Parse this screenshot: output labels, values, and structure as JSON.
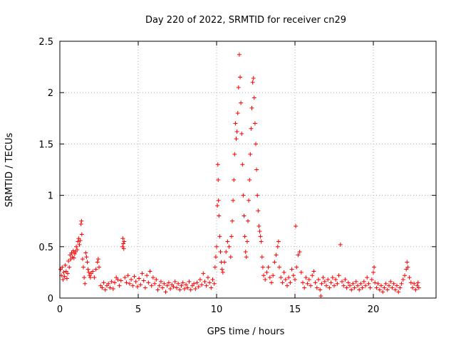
{
  "chart_data": {
    "type": "scatter",
    "title": "Day 220 of 2022, SRMTID for receiver cn29",
    "xlabel": "GPS time / hours",
    "ylabel": "SRMTID / TECUs",
    "xlim": [
      0,
      24
    ],
    "ylim": [
      0,
      2.5
    ],
    "xticks": [
      "0",
      "5",
      "10",
      "15",
      "20"
    ],
    "yticks": [
      "0",
      "0.5",
      "1",
      "1.5",
      "2",
      "2.5"
    ],
    "grid": true,
    "marker": "+",
    "series": [
      {
        "name": "SRMTID",
        "color": "#ff0000",
        "points": [
          [
            0.05,
            0.28
          ],
          [
            0.1,
            0.22
          ],
          [
            0.15,
            0.3
          ],
          [
            0.2,
            0.18
          ],
          [
            0.25,
            0.25
          ],
          [
            0.3,
            0.21
          ],
          [
            0.35,
            0.32
          ],
          [
            0.4,
            0.26
          ],
          [
            0.45,
            0.19
          ],
          [
            0.5,
            0.24
          ],
          [
            0.55,
            0.36
          ],
          [
            0.6,
            0.3
          ],
          [
            0.65,
            0.42
          ],
          [
            0.7,
            0.38
          ],
          [
            0.75,
            0.44
          ],
          [
            0.8,
            0.4
          ],
          [
            0.85,
            0.46
          ],
          [
            0.9,
            0.39
          ],
          [
            0.95,
            0.43
          ],
          [
            1.0,
            0.45
          ],
          [
            1.05,
            0.5
          ],
          [
            1.1,
            0.47
          ],
          [
            1.15,
            0.55
          ],
          [
            1.2,
            0.58
          ],
          [
            1.25,
            0.52
          ],
          [
            1.3,
            0.56
          ],
          [
            1.35,
            0.72
          ],
          [
            1.38,
            0.75
          ],
          [
            1.4,
            0.62
          ],
          [
            1.45,
            0.38
          ],
          [
            1.5,
            0.3
          ],
          [
            1.55,
            0.2
          ],
          [
            1.6,
            0.14
          ],
          [
            1.65,
            0.44
          ],
          [
            1.7,
            0.4
          ],
          [
            1.75,
            0.35
          ],
          [
            1.8,
            0.28
          ],
          [
            1.85,
            0.25
          ],
          [
            1.9,
            0.22
          ],
          [
            1.95,
            0.2
          ],
          [
            2.0,
            0.24
          ],
          [
            2.1,
            0.26
          ],
          [
            2.2,
            0.2
          ],
          [
            2.3,
            0.28
          ],
          [
            2.4,
            0.35
          ],
          [
            2.45,
            0.38
          ],
          [
            2.5,
            0.3
          ],
          [
            2.6,
            0.12
          ],
          [
            2.7,
            0.1
          ],
          [
            2.8,
            0.15
          ],
          [
            2.9,
            0.08
          ],
          [
            3.0,
            0.12
          ],
          [
            3.1,
            0.14
          ],
          [
            3.2,
            0.1
          ],
          [
            3.3,
            0.16
          ],
          [
            3.4,
            0.09
          ],
          [
            3.5,
            0.15
          ],
          [
            3.6,
            0.2
          ],
          [
            3.7,
            0.18
          ],
          [
            3.8,
            0.12
          ],
          [
            3.9,
            0.17
          ],
          [
            4.0,
            0.5
          ],
          [
            4.02,
            0.58
          ],
          [
            4.05,
            0.53
          ],
          [
            4.08,
            0.48
          ],
          [
            4.1,
            0.55
          ],
          [
            4.15,
            0.2
          ],
          [
            4.25,
            0.15
          ],
          [
            4.35,
            0.22
          ],
          [
            4.45,
            0.14
          ],
          [
            4.55,
            0.18
          ],
          [
            4.65,
            0.12
          ],
          [
            4.75,
            0.21
          ],
          [
            4.85,
            0.16
          ],
          [
            4.95,
            0.11
          ],
          [
            5.05,
            0.19
          ],
          [
            5.15,
            0.13
          ],
          [
            5.25,
            0.24
          ],
          [
            5.35,
            0.17
          ],
          [
            5.45,
            0.1
          ],
          [
            5.55,
            0.22
          ],
          [
            5.65,
            0.15
          ],
          [
            5.75,
            0.26
          ],
          [
            5.85,
            0.12
          ],
          [
            5.95,
            0.2
          ],
          [
            6.05,
            0.14
          ],
          [
            6.15,
            0.18
          ],
          [
            6.25,
            0.08
          ],
          [
            6.35,
            0.12
          ],
          [
            6.45,
            0.16
          ],
          [
            6.55,
            0.1
          ],
          [
            6.65,
            0.14
          ],
          [
            6.75,
            0.06
          ],
          [
            6.85,
            0.12
          ],
          [
            6.95,
            0.15
          ],
          [
            7.05,
            0.09
          ],
          [
            7.15,
            0.13
          ],
          [
            7.25,
            0.11
          ],
          [
            7.35,
            0.16
          ],
          [
            7.45,
            0.1
          ],
          [
            7.55,
            0.14
          ],
          [
            7.65,
            0.08
          ],
          [
            7.75,
            0.12
          ],
          [
            7.85,
            0.15
          ],
          [
            7.95,
            0.09
          ],
          [
            8.05,
            0.13
          ],
          [
            8.15,
            0.1
          ],
          [
            8.25,
            0.16
          ],
          [
            8.35,
            0.08
          ],
          [
            8.45,
            0.12
          ],
          [
            8.55,
            0.14
          ],
          [
            8.65,
            0.09
          ],
          [
            8.75,
            0.15
          ],
          [
            8.85,
            0.11
          ],
          [
            8.95,
            0.18
          ],
          [
            9.05,
            0.13
          ],
          [
            9.15,
            0.24
          ],
          [
            9.25,
            0.16
          ],
          [
            9.35,
            0.12
          ],
          [
            9.45,
            0.2
          ],
          [
            9.55,
            0.15
          ],
          [
            9.65,
            0.1
          ],
          [
            9.75,
            0.18
          ],
          [
            9.85,
            0.14
          ],
          [
            9.9,
            0.3
          ],
          [
            9.95,
            0.4
          ],
          [
            10.0,
            0.5
          ],
          [
            10.05,
            0.9
          ],
          [
            10.08,
            1.3
          ],
          [
            10.1,
            1.15
          ],
          [
            10.12,
            0.95
          ],
          [
            10.15,
            0.8
          ],
          [
            10.2,
            0.6
          ],
          [
            10.25,
            0.45
          ],
          [
            10.3,
            0.35
          ],
          [
            10.35,
            0.28
          ],
          [
            10.4,
            0.25
          ],
          [
            10.5,
            0.35
          ],
          [
            10.6,
            0.45
          ],
          [
            10.7,
            0.55
          ],
          [
            10.8,
            0.5
          ],
          [
            10.9,
            0.4
          ],
          [
            10.95,
            0.6
          ],
          [
            11.0,
            0.75
          ],
          [
            11.05,
            0.95
          ],
          [
            11.1,
            1.15
          ],
          [
            11.15,
            1.4
          ],
          [
            11.2,
            1.7
          ],
          [
            11.25,
            1.55
          ],
          [
            11.3,
            1.62
          ],
          [
            11.35,
            1.8
          ],
          [
            11.4,
            2.05
          ],
          [
            11.45,
            2.37
          ],
          [
            11.5,
            2.15
          ],
          [
            11.55,
            1.9
          ],
          [
            11.6,
            1.6
          ],
          [
            11.65,
            1.3
          ],
          [
            11.7,
            1.0
          ],
          [
            11.75,
            0.8
          ],
          [
            11.8,
            0.6
          ],
          [
            11.85,
            0.45
          ],
          [
            11.9,
            0.4
          ],
          [
            11.95,
            0.55
          ],
          [
            12.0,
            0.75
          ],
          [
            12.05,
            0.95
          ],
          [
            12.1,
            1.15
          ],
          [
            12.15,
            1.4
          ],
          [
            12.2,
            1.65
          ],
          [
            12.25,
            1.85
          ],
          [
            12.3,
            2.1
          ],
          [
            12.35,
            2.14
          ],
          [
            12.4,
            1.95
          ],
          [
            12.45,
            1.7
          ],
          [
            12.5,
            1.5
          ],
          [
            12.55,
            1.25
          ],
          [
            12.6,
            1.0
          ],
          [
            12.65,
            0.85
          ],
          [
            12.7,
            0.7
          ],
          [
            12.75,
            0.65
          ],
          [
            12.8,
            0.6
          ],
          [
            12.85,
            0.55
          ],
          [
            12.9,
            0.4
          ],
          [
            12.95,
            0.3
          ],
          [
            13.0,
            0.22
          ],
          [
            13.1,
            0.18
          ],
          [
            13.2,
            0.25
          ],
          [
            13.3,
            0.3
          ],
          [
            13.4,
            0.2
          ],
          [
            13.5,
            0.15
          ],
          [
            13.6,
            0.22
          ],
          [
            13.7,
            0.35
          ],
          [
            13.8,
            0.42
          ],
          [
            13.9,
            0.5
          ],
          [
            13.95,
            0.55
          ],
          [
            14.0,
            0.3
          ],
          [
            14.1,
            0.2
          ],
          [
            14.2,
            0.15
          ],
          [
            14.3,
            0.25
          ],
          [
            14.4,
            0.18
          ],
          [
            14.5,
            0.12
          ],
          [
            14.6,
            0.2
          ],
          [
            14.7,
            0.15
          ],
          [
            14.8,
            0.28
          ],
          [
            14.9,
            0.22
          ],
          [
            15.0,
            0.18
          ],
          [
            15.05,
            0.7
          ],
          [
            15.1,
            0.3
          ],
          [
            15.2,
            0.42
          ],
          [
            15.3,
            0.45
          ],
          [
            15.4,
            0.25
          ],
          [
            15.5,
            0.15
          ],
          [
            15.6,
            0.1
          ],
          [
            15.7,
            0.2
          ],
          [
            15.8,
            0.14
          ],
          [
            15.9,
            0.18
          ],
          [
            16.0,
            0.12
          ],
          [
            16.1,
            0.22
          ],
          [
            16.2,
            0.26
          ],
          [
            16.3,
            0.15
          ],
          [
            16.4,
            0.1
          ],
          [
            16.5,
            0.18
          ],
          [
            16.6,
            0.08
          ],
          [
            16.65,
            0.02
          ],
          [
            16.7,
            0.14
          ],
          [
            16.8,
            0.2
          ],
          [
            16.9,
            0.16
          ],
          [
            17.0,
            0.12
          ],
          [
            17.1,
            0.18
          ],
          [
            17.2,
            0.1
          ],
          [
            17.3,
            0.15
          ],
          [
            17.4,
            0.2
          ],
          [
            17.5,
            0.12
          ],
          [
            17.6,
            0.18
          ],
          [
            17.7,
            0.14
          ],
          [
            17.8,
            0.22
          ],
          [
            17.9,
            0.52
          ],
          [
            18.0,
            0.16
          ],
          [
            18.1,
            0.12
          ],
          [
            18.2,
            0.18
          ],
          [
            18.3,
            0.1
          ],
          [
            18.4,
            0.15
          ],
          [
            18.5,
            0.12
          ],
          [
            18.6,
            0.08
          ],
          [
            18.7,
            0.14
          ],
          [
            18.8,
            0.1
          ],
          [
            18.9,
            0.16
          ],
          [
            19.0,
            0.12
          ],
          [
            19.1,
            0.08
          ],
          [
            19.2,
            0.14
          ],
          [
            19.3,
            0.1
          ],
          [
            19.4,
            0.16
          ],
          [
            19.5,
            0.12
          ],
          [
            19.6,
            0.2
          ],
          [
            19.7,
            0.14
          ],
          [
            19.8,
            0.1
          ],
          [
            19.9,
            0.18
          ],
          [
            20.0,
            0.25
          ],
          [
            20.05,
            0.3
          ],
          [
            20.1,
            0.15
          ],
          [
            20.2,
            0.1
          ],
          [
            20.3,
            0.14
          ],
          [
            20.4,
            0.08
          ],
          [
            20.5,
            0.12
          ],
          [
            20.6,
            0.06
          ],
          [
            20.7,
            0.1
          ],
          [
            20.8,
            0.14
          ],
          [
            20.9,
            0.08
          ],
          [
            21.0,
            0.12
          ],
          [
            21.1,
            0.16
          ],
          [
            21.2,
            0.1
          ],
          [
            21.3,
            0.14
          ],
          [
            21.4,
            0.08
          ],
          [
            21.5,
            0.12
          ],
          [
            21.6,
            0.06
          ],
          [
            21.7,
            0.1
          ],
          [
            21.8,
            0.14
          ],
          [
            21.9,
            0.18
          ],
          [
            22.0,
            0.22
          ],
          [
            22.1,
            0.28
          ],
          [
            22.15,
            0.35
          ],
          [
            22.2,
            0.3
          ],
          [
            22.3,
            0.2
          ],
          [
            22.4,
            0.15
          ],
          [
            22.5,
            0.1
          ],
          [
            22.6,
            0.14
          ],
          [
            22.7,
            0.08
          ],
          [
            22.8,
            0.12
          ],
          [
            22.85,
            0.15
          ],
          [
            22.9,
            0.1
          ]
        ]
      }
    ]
  }
}
